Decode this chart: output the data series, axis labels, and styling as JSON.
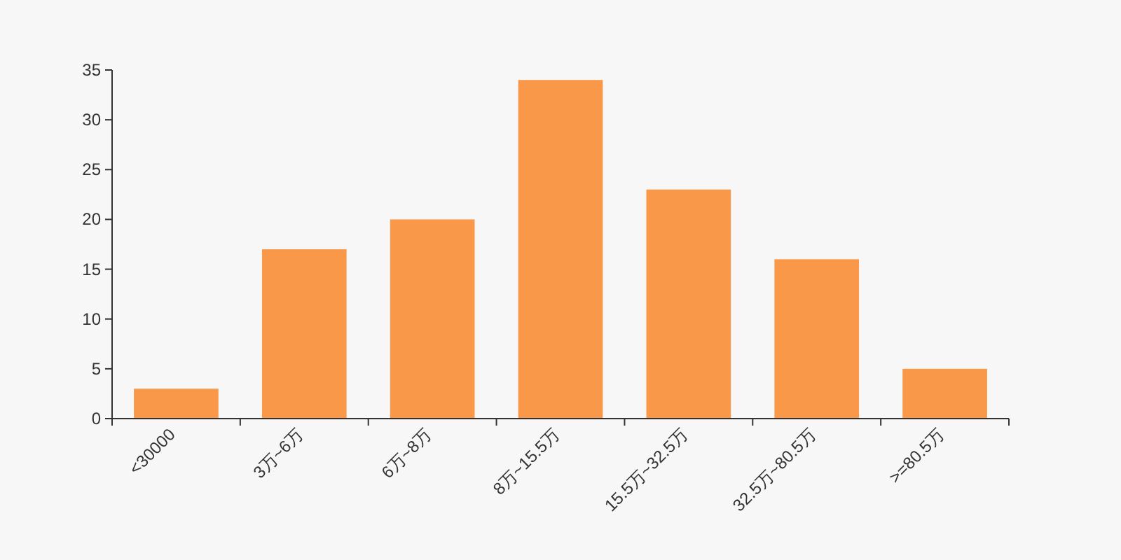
{
  "chart_data": {
    "type": "bar",
    "categories": [
      "<30000",
      "3万~6万",
      "6万~8万",
      "8万~15.5万",
      "15.5万~32.5万",
      "32.5万~80.5万",
      ">=80.5万"
    ],
    "values": [
      3,
      17,
      20,
      34,
      23,
      16,
      5
    ],
    "color": "#f89848",
    "ylim": [
      0,
      35
    ],
    "yticks": [
      0,
      5,
      10,
      15,
      20,
      25,
      30,
      35
    ],
    "grid": false
  }
}
